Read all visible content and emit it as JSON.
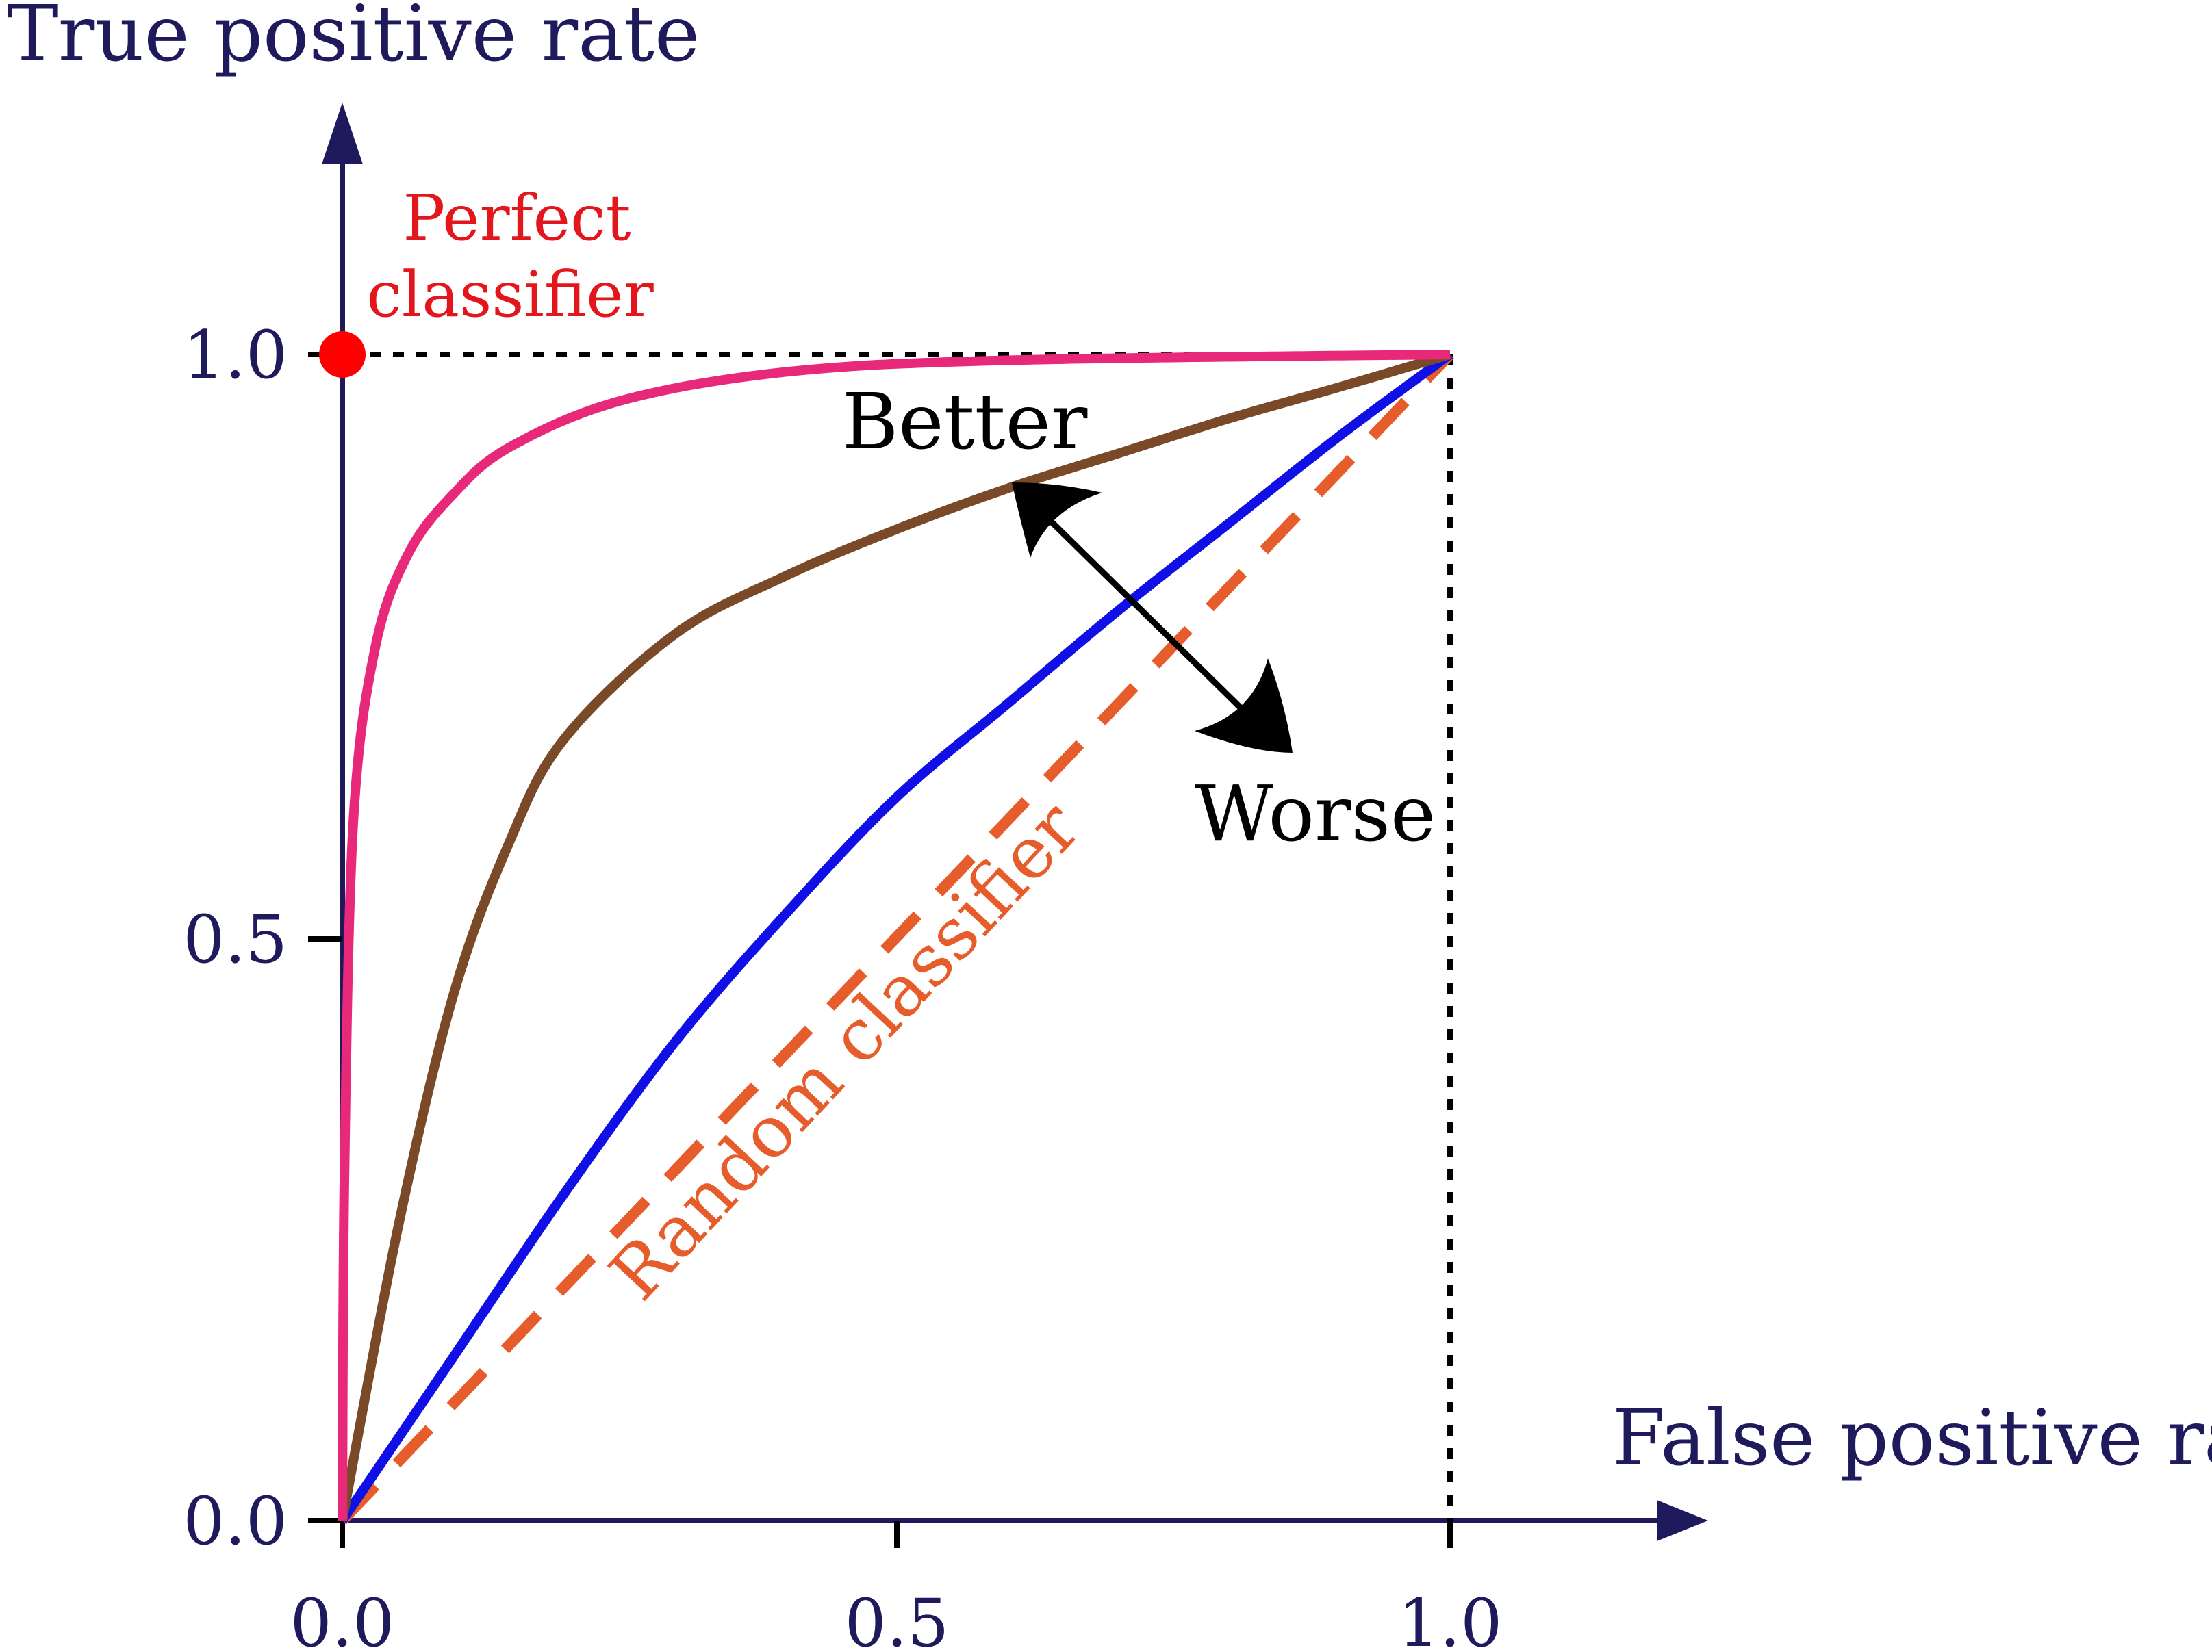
{
  "chart_data": {
    "type": "line",
    "title": "",
    "xlabel": "False positive rate",
    "ylabel": "True positive rate",
    "xlim": [
      0,
      1
    ],
    "ylim": [
      0,
      1
    ],
    "x_ticks": [
      "0.0",
      "0.5",
      "1.0"
    ],
    "y_ticks": [
      "0.0",
      "0.5",
      "1.0"
    ],
    "grid": false,
    "legend": "none",
    "series": [
      {
        "color": "#e8297a",
        "style": "solid",
        "points": [
          [
            0,
            0
          ],
          [
            0.002,
            0.3
          ],
          [
            0.01,
            0.6
          ],
          [
            0.03,
            0.75
          ],
          [
            0.06,
            0.83
          ],
          [
            0.1,
            0.88
          ],
          [
            0.15,
            0.92
          ],
          [
            0.25,
            0.96
          ],
          [
            0.4,
            0.985
          ],
          [
            0.6,
            0.995
          ],
          [
            1.0,
            1.0
          ]
        ]
      },
      {
        "color": "#7a4a28",
        "style": "solid",
        "points": [
          [
            0,
            0
          ],
          [
            0.05,
            0.25
          ],
          [
            0.1,
            0.45
          ],
          [
            0.15,
            0.58
          ],
          [
            0.2,
            0.67
          ],
          [
            0.3,
            0.76
          ],
          [
            0.4,
            0.81
          ],
          [
            0.5,
            0.85
          ],
          [
            0.6,
            0.885
          ],
          [
            0.7,
            0.915
          ],
          [
            0.8,
            0.945
          ],
          [
            0.9,
            0.972
          ],
          [
            1.0,
            1.0
          ]
        ]
      },
      {
        "color": "#1010e6",
        "style": "solid",
        "points": [
          [
            0,
            0
          ],
          [
            0.1,
            0.14
          ],
          [
            0.2,
            0.28
          ],
          [
            0.3,
            0.41
          ],
          [
            0.4,
            0.52
          ],
          [
            0.5,
            0.62
          ],
          [
            0.6,
            0.7
          ],
          [
            0.7,
            0.78
          ],
          [
            0.8,
            0.855
          ],
          [
            0.9,
            0.93
          ],
          [
            1.0,
            1.0
          ]
        ]
      },
      {
        "color": "#e65c2a",
        "style": "dashed",
        "points": [
          [
            0,
            0
          ],
          [
            1.0,
            1.0
          ]
        ]
      }
    ],
    "annotations": {
      "perfect_classifier_line1": "Perfect",
      "perfect_classifier_line2": "classifier",
      "better": "Better",
      "worse": "Worse",
      "random_classifier": "Random classifier"
    },
    "perfect_point": [
      0,
      1
    ],
    "colors": {
      "axis": "#1e1a5c",
      "perfect": "#e3161b",
      "reference_lines": "#000000"
    }
  }
}
